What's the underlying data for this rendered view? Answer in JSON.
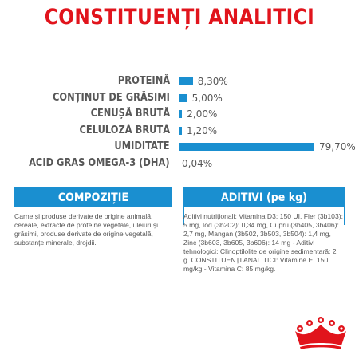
{
  "title": "CONSTITUENȚI ANALITICI",
  "colors": {
    "accent": "#e1141c",
    "bar": "#1a8fd0",
    "text": "#575757"
  },
  "analysis": [
    {
      "label": "PROTEINĂ",
      "value_text": "8,30%",
      "value": 8.3
    },
    {
      "label": "CONȚINUT DE GRĂSIMI",
      "value_text": "5,00%",
      "value": 5.0
    },
    {
      "label": "CENUȘĂ BRUTĂ",
      "value_text": "2,00%",
      "value": 2.0
    },
    {
      "label": "CELULOZĂ BRUTĂ",
      "value_text": "1,20%",
      "value": 1.2
    },
    {
      "label": "UMIDITATE",
      "value_text": "79,70%",
      "value": 79.7
    },
    {
      "label": "ACID GRAS OMEGA-3 (DHA)",
      "value_text": "0,04%",
      "value": 0.04
    }
  ],
  "composition": {
    "heading": "COMPOZIȚIE",
    "text": "Carne și produse derivate de origine animală, cereale, extracte de proteine vegetale, uleiuri și grăsimi, produse derivate de origine vegetală, substanțe minerale, drojdii."
  },
  "additives": {
    "heading": "ADITIVI (pe kg)",
    "text": "Aditivi nutriționali: Vitamina D3: 150 UI, Fier (3b103): 5 mg, Iod (3b202): 0,34 mg, Cupru (3b405, 3b406): 2,7 mg, Mangan (3b502, 3b503, 3b504): 1,4 mg, Zinc (3b603, 3b605, 3b606): 14 mg - Aditivi tehnologici: Clinoptilolite de origine sedimentară: 2 g. CONSTITUENȚI ANALITICI: Vitamine E: 150 mg/kg - Vitamina C: 85 mg/kg."
  },
  "logo": {
    "name": "royal-canin-crown-logo"
  }
}
